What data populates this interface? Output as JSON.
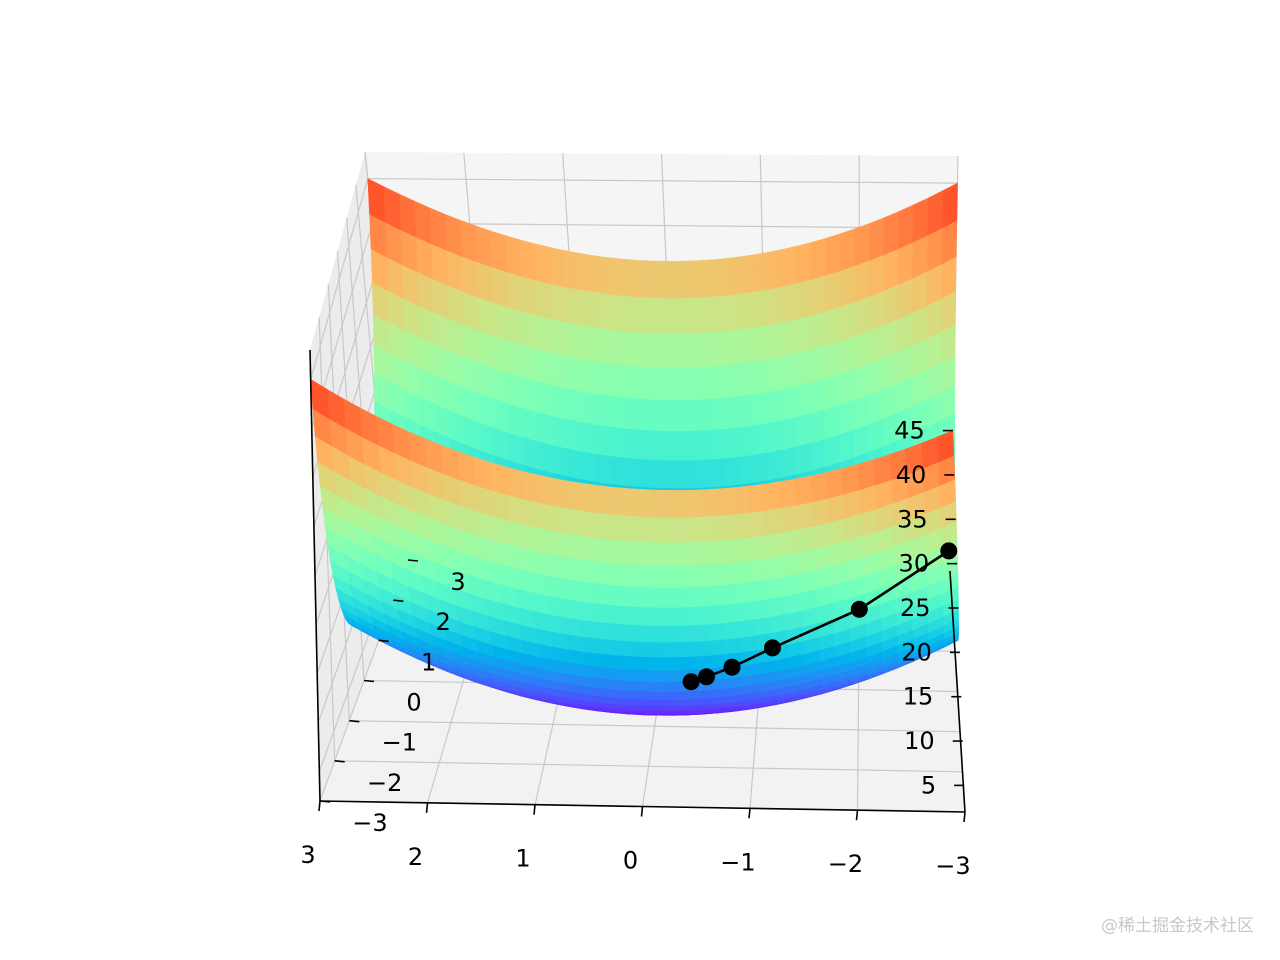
{
  "chart_data": {
    "type": "surface3d",
    "surface_function": "z = x^2 + 4*y^2",
    "colormap": "rainbow",
    "x_range": [
      -3,
      3
    ],
    "y_range": [
      -3,
      3
    ],
    "z_range": [
      2,
      48
    ],
    "x_ticks": [
      "3",
      "2",
      "1",
      "0",
      "−1",
      "−2",
      "−3"
    ],
    "y_ticks": [
      "−3",
      "−2",
      "−1",
      "0",
      "1",
      "2",
      "3"
    ],
    "z_ticks": [
      "5",
      "10",
      "15",
      "20",
      "25",
      "30",
      "35",
      "40",
      "45"
    ],
    "grid": true,
    "path": {
      "style": "black line with circle markers",
      "points": [
        {
          "x": -3.0,
          "y": 3.5,
          "z": 0
        },
        {
          "x": -2.0,
          "y": 2.0,
          "z": 0
        },
        {
          "x": -1.1,
          "y": 1.0,
          "z": 0
        },
        {
          "x": -0.7,
          "y": 0.5,
          "z": 0
        },
        {
          "x": -0.45,
          "y": 0.25,
          "z": 0
        },
        {
          "x": -0.3,
          "y": 0.12,
          "z": 0
        }
      ]
    },
    "title": "",
    "xlabel": "",
    "ylabel": "",
    "zlabel": ""
  },
  "watermark": "@稀土掘金技术社区"
}
